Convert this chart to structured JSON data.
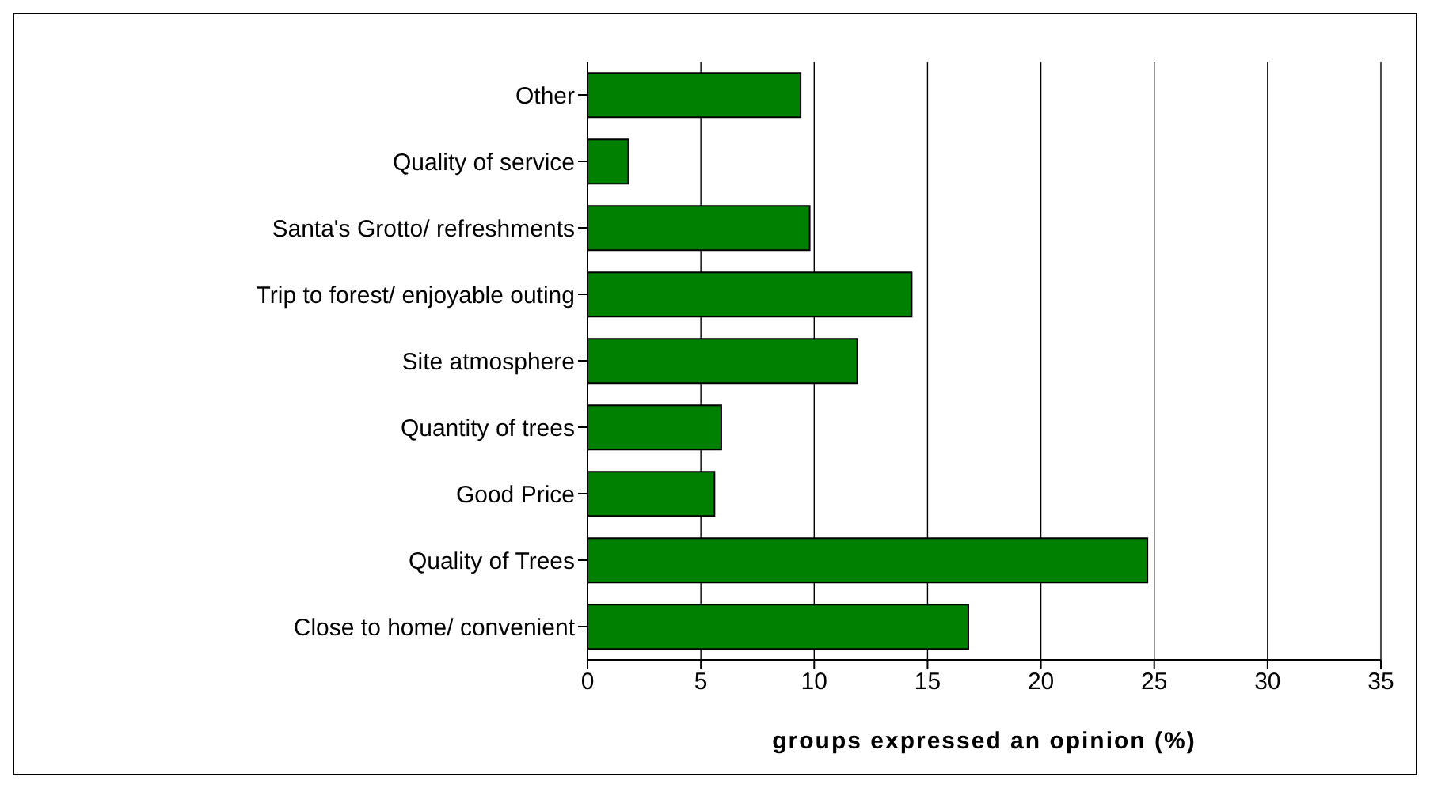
{
  "chart_data": {
    "type": "bar",
    "orientation": "horizontal",
    "xlabel": "groups expressed an opinion (%)",
    "categories": [
      "Other",
      "Quality of service",
      "Santa's Grotto/ refreshments",
      "Trip to forest/ enjoyable outing",
      "Site atmosphere",
      "Quantity of trees",
      "Good Price",
      "Quality of Trees",
      "Close to home/ convenient"
    ],
    "values": [
      9.4,
      1.8,
      9.8,
      14.3,
      11.9,
      5.9,
      5.6,
      24.7,
      16.8
    ],
    "color": "#008000",
    "xlim": [
      0,
      35
    ],
    "xticks": [
      0,
      5,
      10,
      15,
      20,
      25,
      30,
      35
    ],
    "grid": "x"
  }
}
